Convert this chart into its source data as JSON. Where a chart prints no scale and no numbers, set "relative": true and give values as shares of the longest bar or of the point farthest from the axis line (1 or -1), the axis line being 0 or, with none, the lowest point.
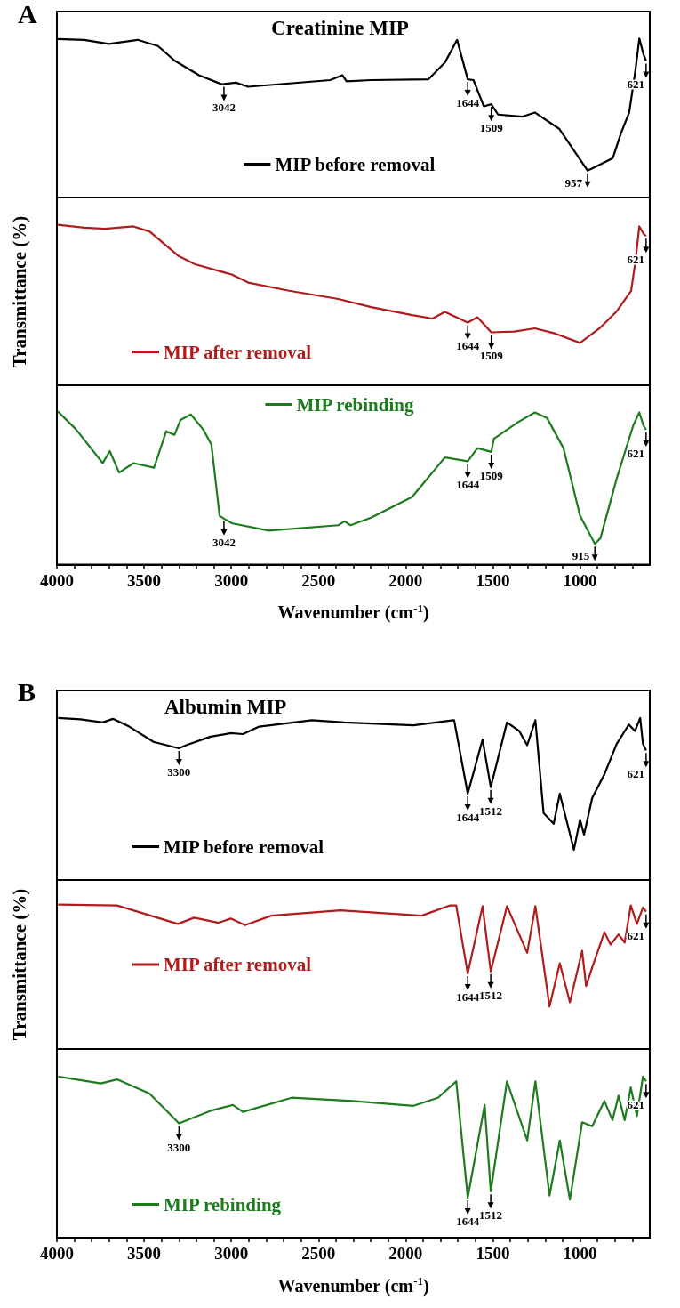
{
  "chart_data": [
    {
      "type": "line",
      "relative": true,
      "title": "Creatinine MIP",
      "legend": "bottom",
      "tick_labels": false,
      "xlim": [
        4000,
        600
      ],
      "annotations": [
        "A",
        {
          "text": "3042",
          "x": 3042,
          "y": 0.714
        },
        {
          "text": "1644",
          "x": 1644,
          "y": 0.744
        },
        {
          "text": "1509",
          "x": 1509,
          "y": 0.587
        },
        {
          "text": "957",
          "x": 957,
          "y": 0.17
        },
        {
          "text": "621",
          "x": 621,
          "y": 0.86
        }
      ],
      "x": [
        3995,
        3843,
        3702,
        3537,
        3420,
        3326,
        3185,
        3056,
        3042,
        2973,
        2903,
        2668,
        2433,
        2363,
        2339,
        2198,
        1869,
        1775,
        1705,
        1644,
        1611,
        1552,
        1509,
        1470,
        1329,
        1259,
        1118,
        957,
        930,
        812,
        765,
        718,
        683,
        660,
        636,
        621
      ],
      "series": [
        {
          "name": "MIP before removal",
          "color": "#000000",
          "values": [
            0.997,
            0.992,
            0.966,
            0.992,
            0.953,
            0.862,
            0.77,
            0.713,
            0.714,
            0.723,
            0.697,
            0.718,
            0.739,
            0.77,
            0.731,
            0.739,
            0.744,
            0.849,
            0.992,
            0.744,
            0.739,
            0.574,
            0.587,
            0.522,
            0.509,
            0.535,
            0.431,
            0.17,
            0.183,
            0.248,
            0.405,
            0.535,
            0.796,
            1.0,
            0.9,
            0.86
          ]
        }
      ]
    },
    {
      "type": "line",
      "relative": true,
      "ylabel": "Transmittance (%)",
      "legend": "bottom left",
      "tick_labels": false,
      "xlim": [
        4000,
        600
      ],
      "annotations": [
        {
          "text": "1644",
          "x": 1644,
          "y": 0.391
        },
        {
          "text": "1509",
          "x": 1509,
          "y": 0.33
        },
        {
          "text": "621",
          "x": 621,
          "y": 0.93
        }
      ],
      "x": [
        3995,
        3843,
        3725,
        3561,
        3467,
        3302,
        3208,
        2997,
        2903,
        2668,
        2386,
        2198,
        1963,
        1846,
        1775,
        1644,
        1588,
        1509,
        1376,
        1259,
        1141,
        1000,
        883,
        789,
        707,
        683,
        660,
        636,
        621
      ],
      "series": [
        {
          "name": "MIP after removal",
          "color": "#b01c1c",
          "values": [
            1.0,
            0.982,
            0.975,
            0.99,
            0.957,
            0.805,
            0.754,
            0.69,
            0.64,
            0.589,
            0.538,
            0.487,
            0.437,
            0.416,
            0.457,
            0.391,
            0.424,
            0.33,
            0.335,
            0.355,
            0.322,
            0.264,
            0.36,
            0.462,
            0.589,
            0.766,
            0.99,
            0.944,
            0.93
          ]
        }
      ]
    },
    {
      "type": "line",
      "relative": true,
      "xlabel": "Wavenumber (cm$^{-1}$)",
      "legend": "top",
      "tick_labels": "x",
      "xlim": [
        4000,
        600
      ],
      "xticks": [
        4000,
        {
          "value": 3900,
          "label": null
        },
        {
          "value": 3800,
          "label": null
        },
        {
          "value": 3700,
          "label": null
        },
        {
          "value": 3600,
          "label": null
        },
        3500,
        {
          "value": 3400,
          "label": null
        },
        {
          "value": 3300,
          "label": null
        },
        {
          "value": 3200,
          "label": null
        },
        {
          "value": 3100,
          "label": null
        },
        3000,
        {
          "value": 2900,
          "label": null
        },
        {
          "value": 2800,
          "label": null
        },
        {
          "value": 2700,
          "label": null
        },
        {
          "value": 2600,
          "label": null
        },
        2500,
        {
          "value": 2400,
          "label": null
        },
        {
          "value": 2300,
          "label": null
        },
        {
          "value": 2200,
          "label": null
        },
        {
          "value": 2100,
          "label": null
        },
        2000,
        {
          "value": 1900,
          "label": null
        },
        {
          "value": 1800,
          "label": null
        },
        {
          "value": 1700,
          "label": null
        },
        {
          "value": 1600,
          "label": null
        },
        1500,
        {
          "value": 1400,
          "label": null
        },
        {
          "value": 1300,
          "label": null
        },
        {
          "value": 1200,
          "label": null
        },
        {
          "value": 1100,
          "label": null
        },
        1000,
        {
          "value": 900,
          "label": null
        },
        {
          "value": 800,
          "label": null
        },
        {
          "value": 700,
          "label": null
        }
      ],
      "annotations": [
        {
          "text": "3042",
          "x": 3042,
          "y": 0.3
        },
        {
          "text": "1644",
          "x": 1644,
          "y": 0.674
        },
        {
          "text": "1509",
          "x": 1509,
          "y": 0.735
        },
        {
          "text": "915",
          "x": 915,
          "y": 0.135
        },
        {
          "text": "621",
          "x": 621,
          "y": 0.88
        }
      ],
      "x": [
        3995,
        3890,
        3737,
        3697,
        3643,
        3561,
        3443,
        3373,
        3326,
        3291,
        3232,
        3161,
        3114,
        3067,
        3042,
        2997,
        2786,
        2386,
        2351,
        2316,
        2198,
        1963,
        1775,
        1644,
        1588,
        1509,
        1494,
        1353,
        1259,
        1189,
        1095,
        1000,
        915,
        883,
        789,
        695,
        660,
        636,
        621
      ],
      "series": [
        {
          "name": "MIP rebinding",
          "color": "#1e7b1e",
          "values": [
            1.0,
            0.882,
            0.662,
            0.74,
            0.6,
            0.662,
            0.632,
            0.87,
            0.846,
            0.944,
            0.98,
            0.882,
            0.784,
            0.319,
            0.3,
            0.27,
            0.221,
            0.257,
            0.282,
            0.257,
            0.306,
            0.441,
            0.699,
            0.674,
            0.76,
            0.735,
            0.821,
            0.931,
            0.993,
            0.956,
            0.76,
            0.319,
            0.135,
            0.172,
            0.564,
            0.907,
            0.993,
            0.907,
            0.88
          ]
        }
      ]
    },
    {
      "type": "line",
      "relative": true,
      "title": "Albumin MIP",
      "legend": "bottom left",
      "tick_labels": false,
      "xlim": [
        4000,
        600
      ],
      "annotations": [
        "B",
        {
          "text": "3300",
          "x": 3300,
          "y": 0.813
        },
        {
          "text": "1644",
          "x": 1644,
          "y": 0.533
        },
        {
          "text": "1512",
          "x": 1512,
          "y": 0.573
        },
        {
          "text": "621",
          "x": 621,
          "y": 0.8
        }
      ],
      "x": [
        3993,
        3865,
        3737,
        3679,
        3585,
        3446,
        3300,
        3259,
        3119,
        3003,
        2933,
        2840,
        2537,
        2351,
        1955,
        1722,
        1644,
        1559,
        1512,
        1419,
        1349,
        1303,
        1256,
        1209,
        1151,
        1116,
        1035,
        1000,
        977,
        930,
        860,
        790,
        720,
        685,
        655,
        639,
        621
      ],
      "series": [
        {
          "name": "MIP before removal",
          "color": "#000000",
          "values": [
            1.0,
            0.992,
            0.973,
            0.995,
            0.947,
            0.853,
            0.813,
            0.832,
            0.885,
            0.907,
            0.901,
            0.947,
            0.987,
            0.973,
            0.955,
            0.987,
            0.533,
            0.867,
            0.573,
            0.973,
            0.92,
            0.832,
            0.987,
            0.413,
            0.347,
            0.533,
            0.187,
            0.373,
            0.28,
            0.507,
            0.653,
            0.84,
            0.96,
            0.92,
            1.0,
            0.84,
            0.8
          ]
        }
      ]
    },
    {
      "type": "line",
      "relative": true,
      "ylabel": "Transmittance (%)",
      "legend": "left",
      "tick_labels": false,
      "xlim": [
        4000,
        600
      ],
      "annotations": [
        {
          "text": "1644",
          "x": 1644,
          "y": 0.523
        },
        {
          "text": "1512",
          "x": 1512,
          "y": 0.537
        },
        {
          "text": "621",
          "x": 621,
          "y": 0.95
        }
      ],
      "x": [
        3993,
        3655,
        3306,
        3213,
        3073,
        3003,
        2921,
        2770,
        2374,
        1908,
        1745,
        1710,
        1644,
        1559,
        1512,
        1419,
        1303,
        1256,
        1175,
        1116,
        1058,
        988,
        965,
        930,
        860,
        825,
        779,
        744,
        709,
        674,
        639,
        621
      ],
      "series": [
        {
          "name": "MIP after removal",
          "color": "#b01c1c",
          "values": [
            1.0,
            0.994,
            0.866,
            0.909,
            0.874,
            0.903,
            0.857,
            0.923,
            0.96,
            0.923,
            0.994,
            0.994,
            0.523,
            0.989,
            0.537,
            0.989,
            0.666,
            0.989,
            0.294,
            0.594,
            0.323,
            0.68,
            0.437,
            0.566,
            0.809,
            0.723,
            0.794,
            0.737,
            0.994,
            0.866,
            0.98,
            0.95
          ]
        }
      ]
    },
    {
      "type": "line",
      "relative": true,
      "xlabel": "Wavenumber (cm$^{-1}$)",
      "legend": "bottom left",
      "tick_labels": "x",
      "xlim": [
        4000,
        600
      ],
      "xticks": [
        4000,
        {
          "value": 3900,
          "label": null
        },
        {
          "value": 3800,
          "label": null
        },
        {
          "value": 3700,
          "label": null
        },
        {
          "value": 3600,
          "label": null
        },
        3500,
        {
          "value": 3400,
          "label": null
        },
        {
          "value": 3300,
          "label": null
        },
        {
          "value": 3200,
          "label": null
        },
        {
          "value": 3100,
          "label": null
        },
        3000,
        {
          "value": 2900,
          "label": null
        },
        {
          "value": 2800,
          "label": null
        },
        {
          "value": 2700,
          "label": null
        },
        {
          "value": 2600,
          "label": null
        },
        2500,
        {
          "value": 2400,
          "label": null
        },
        {
          "value": 2300,
          "label": null
        },
        {
          "value": 2200,
          "label": null
        },
        {
          "value": 2100,
          "label": null
        },
        2000,
        {
          "value": 1900,
          "label": null
        },
        {
          "value": 1800,
          "label": null
        },
        {
          "value": 1700,
          "label": null
        },
        {
          "value": 1600,
          "label": null
        },
        1500,
        {
          "value": 1400,
          "label": null
        },
        {
          "value": 1300,
          "label": null
        },
        {
          "value": 1200,
          "label": null
        },
        {
          "value": 1100,
          "label": null
        },
        1000,
        {
          "value": 900,
          "label": null
        },
        {
          "value": 800,
          "label": null
        },
        {
          "value": 700,
          "label": null
        }
      ],
      "annotations": [
        {
          "text": "3300",
          "x": 3300,
          "y": 0.709
        },
        {
          "text": "1644",
          "x": 1644,
          "y": 0.248
        },
        {
          "text": "1512",
          "x": 1512,
          "y": 0.286
        },
        {
          "text": "621",
          "x": 621,
          "y": 0.97
        }
      ],
      "x": [
        3993,
        3748,
        3655,
        3469,
        3300,
        3119,
        2991,
        2933,
        2654,
        2304,
        1955,
        1815,
        1710,
        1644,
        1547,
        1512,
        1419,
        1303,
        1256,
        1175,
        1116,
        1058,
        988,
        930,
        860,
        814,
        779,
        744,
        709,
        674,
        639,
        621
      ],
      "series": [
        {
          "name": "MIP rebinding",
          "color": "#1e7b1e",
          "values": [
            1.0,
            0.957,
            0.982,
            0.894,
            0.709,
            0.787,
            0.823,
            0.78,
            0.868,
            0.848,
            0.818,
            0.868,
            0.97,
            0.248,
            0.823,
            0.286,
            0.97,
            0.603,
            0.97,
            0.261,
            0.603,
            0.235,
            0.716,
            0.691,
            0.848,
            0.729,
            0.881,
            0.729,
            0.932,
            0.754,
            1.0,
            0.97
          ]
        }
      ]
    }
  ]
}
